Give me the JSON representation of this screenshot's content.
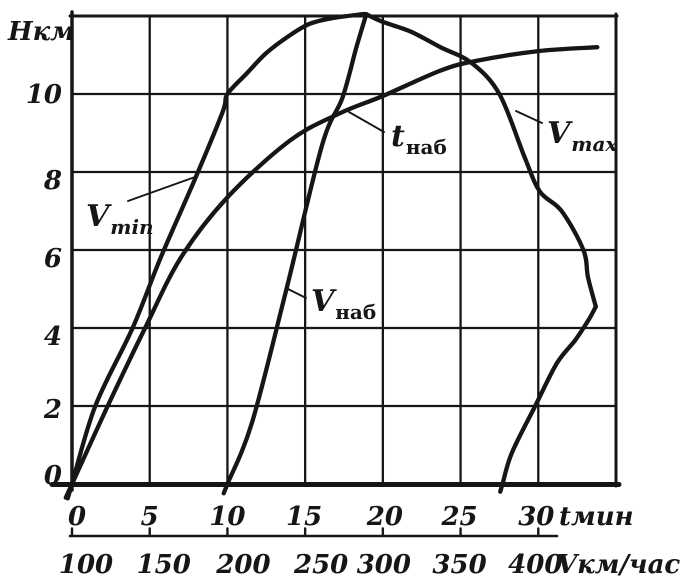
{
  "figure": {
    "background": "#ffffff",
    "ink_color": "#161616",
    "corner_label": "Нкм",
    "time_axis_label": "tмин",
    "speed_axis_label": "Vкм/час"
  },
  "chart_data": {
    "type": "line",
    "title": "",
    "description": "Aircraft climb performance chart: altitude H (км) versus minimum and maximum level speed V (км/час), climbing speed, and time to climb t (мин).",
    "grid": true,
    "y_axis": {
      "label": "Н",
      "unit": "км",
      "min": 0,
      "max": 12,
      "tick_step": 2,
      "tick_values": [
        10,
        8,
        6,
        4,
        2,
        0
      ]
    },
    "x_axis_time": {
      "label": "t",
      "unit": "мин",
      "min": 0,
      "max_drawn": 35,
      "tick_values": [
        0,
        5,
        10,
        15,
        20,
        25,
        30
      ]
    },
    "x_axis_speed": {
      "label": "V",
      "unit": "км/час",
      "min": 100,
      "max_drawn": 450,
      "tick_values": [
        100,
        150,
        200,
        250,
        300,
        350,
        400
      ]
    },
    "series": [
      {
        "id": "vmin",
        "name": "Vmin",
        "label_main": "V",
        "label_sub": "min",
        "x_scale": "speed",
        "points": [
          [
            100,
            0
          ],
          [
            115,
            2
          ],
          [
            139,
            4
          ],
          [
            157,
            5.8
          ],
          [
            180,
            7.9
          ],
          [
            197,
            9.55
          ],
          [
            200,
            10
          ],
          [
            213,
            10.55
          ],
          [
            225,
            11.05
          ],
          [
            240,
            11.5
          ],
          [
            253,
            11.8
          ],
          [
            268,
            11.95
          ],
          [
            288,
            12.05
          ]
        ]
      },
      {
        "id": "vnab",
        "name": "Vнаб",
        "label_main": "V",
        "label_sub": "наб",
        "x_scale": "speed",
        "points": [
          [
            200,
            0
          ],
          [
            216,
            1.6
          ],
          [
            238,
            5
          ],
          [
            261,
            8.7
          ],
          [
            274,
            9.9
          ],
          [
            283,
            11.2
          ],
          [
            289,
            12
          ]
        ]
      },
      {
        "id": "tnab",
        "name": "tнаб",
        "label_main": "t",
        "label_sub": "наб",
        "x_scale": "time",
        "points": [
          [
            0,
            0
          ],
          [
            2.3,
            2
          ],
          [
            4.7,
            4
          ],
          [
            7,
            5.8
          ],
          [
            10,
            7.35
          ],
          [
            14,
            8.8
          ],
          [
            17.2,
            9.5
          ],
          [
            20,
            9.95
          ],
          [
            23.7,
            10.6
          ],
          [
            26,
            10.85
          ],
          [
            30,
            11.1
          ],
          [
            33.8,
            11.2
          ]
        ]
      },
      {
        "id": "vmax",
        "name": "Vmax",
        "label_main": "V",
        "label_sub": "max",
        "x_scale": "speed",
        "points": [
          [
            377,
            0
          ],
          [
            383,
            0.8
          ],
          [
            398,
            2
          ],
          [
            412,
            3.1
          ],
          [
            424,
            3.7
          ],
          [
            433,
            4.25
          ],
          [
            437,
            4.55
          ],
          [
            432,
            5.3
          ],
          [
            429,
            6
          ],
          [
            415,
            7
          ],
          [
            401,
            7.5
          ],
          [
            391,
            8.4
          ],
          [
            375,
            10
          ],
          [
            357,
            10.8
          ],
          [
            337,
            11.2
          ],
          [
            318,
            11.6
          ],
          [
            300,
            11.85
          ],
          [
            289,
            12.05
          ]
        ]
      }
    ]
  }
}
